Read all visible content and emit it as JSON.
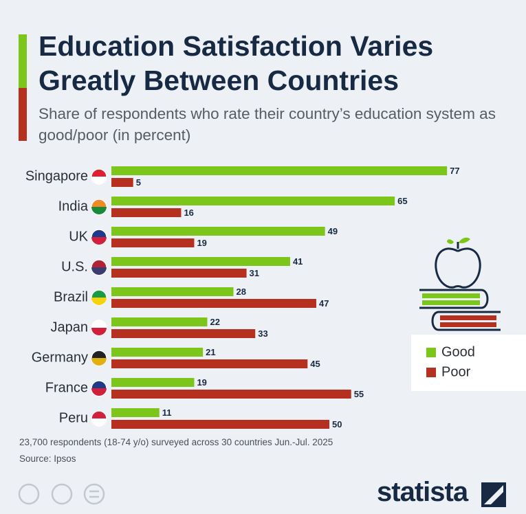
{
  "chart_data": {
    "type": "bar",
    "orientation": "horizontal",
    "title": "Education Satisfaction Varies Greatly Between Countries",
    "subtitle": "Share of respondents who rate their country’s education system as good/poor (in percent)",
    "categories": [
      "Singapore",
      "India",
      "UK",
      "U.S.",
      "Brazil",
      "Japan",
      "Germany",
      "France",
      "Peru"
    ],
    "series": [
      {
        "name": "Good",
        "color": "#7cc51a",
        "values": [
          77,
          65,
          49,
          41,
          28,
          22,
          21,
          19,
          11
        ]
      },
      {
        "name": "Poor",
        "color": "#b5301f",
        "values": [
          5,
          16,
          19,
          31,
          47,
          33,
          45,
          55,
          50
        ]
      }
    ],
    "note": "23,700 respondents (18-74 y/o) surveyed across 30 countries Jun.-Jul. 2025",
    "source": "Source: Ipsos",
    "brand": "statista"
  }
}
